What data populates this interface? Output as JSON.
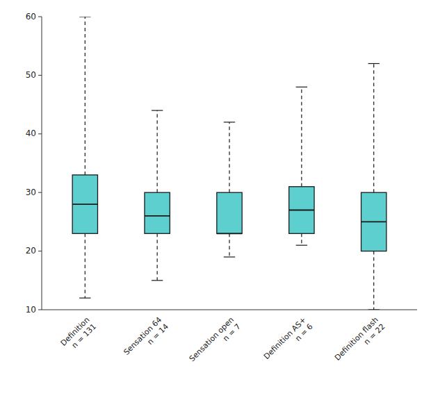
{
  "chart_data": {
    "type": "box",
    "categories": [
      "Definition\nn = 131",
      "Sensation 64\nn = 14",
      "Sensation open\nn = 7",
      "Definition AS+\nn = 6",
      "Definition flash\nn = 22"
    ],
    "whisker_low": [
      12,
      15,
      19,
      21,
      10
    ],
    "q1": [
      23,
      23,
      23,
      23,
      20
    ],
    "median": [
      28,
      26,
      23,
      27,
      25
    ],
    "q3": [
      33,
      30,
      30,
      31,
      30
    ],
    "whisker_high": [
      60,
      44,
      42,
      48,
      52
    ],
    "color": "#5ECFCF",
    "ylim": [
      10,
      60
    ],
    "yticks": [
      10,
      20,
      30,
      40,
      50,
      60
    ],
    "grid": false
  }
}
